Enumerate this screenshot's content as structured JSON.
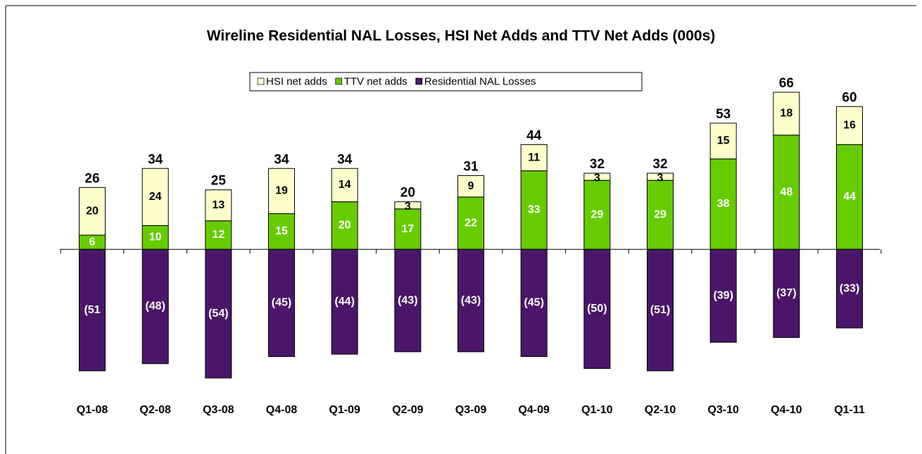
{
  "chart_data": {
    "type": "bar",
    "stacked": true,
    "title": "Wireline Residential NAL Losses, HSI Net Adds and TTV Net Adds (000s)",
    "categories": [
      "Q1-08",
      "Q2-08",
      "Q3-08",
      "Q4-08",
      "Q1-09",
      "Q2-09",
      "Q3-09",
      "Q4-09",
      "Q1-10",
      "Q2-10",
      "Q3-10",
      "Q4-10",
      "Q1-11"
    ],
    "series": [
      {
        "name": "HSI net adds",
        "color": "#ffffcc",
        "values": [
          20,
          24,
          13,
          19,
          14,
          3,
          9,
          11,
          3,
          3,
          15,
          18,
          16
        ]
      },
      {
        "name": "TTV net adds",
        "color": "#66cc00",
        "values": [
          6,
          10,
          12,
          15,
          20,
          17,
          22,
          33,
          29,
          29,
          38,
          48,
          44
        ]
      },
      {
        "name": "Residential NAL Losses",
        "color": "#4b1669",
        "values": [
          -51,
          -48,
          -54,
          -45,
          -44,
          -43,
          -43,
          -45,
          -50,
          -51,
          -39,
          -37,
          -33
        ],
        "value_labels": [
          "(51",
          "(48)",
          "(54)",
          "(45)",
          "(44)",
          "(43)",
          "(43)",
          "(45)",
          "(50)",
          "(51)",
          "(39)",
          "(37)",
          "(33)"
        ]
      }
    ],
    "totals": [
      26,
      34,
      25,
      34,
      34,
      20,
      31,
      44,
      32,
      32,
      53,
      66,
      60
    ],
    "legend": "top"
  }
}
